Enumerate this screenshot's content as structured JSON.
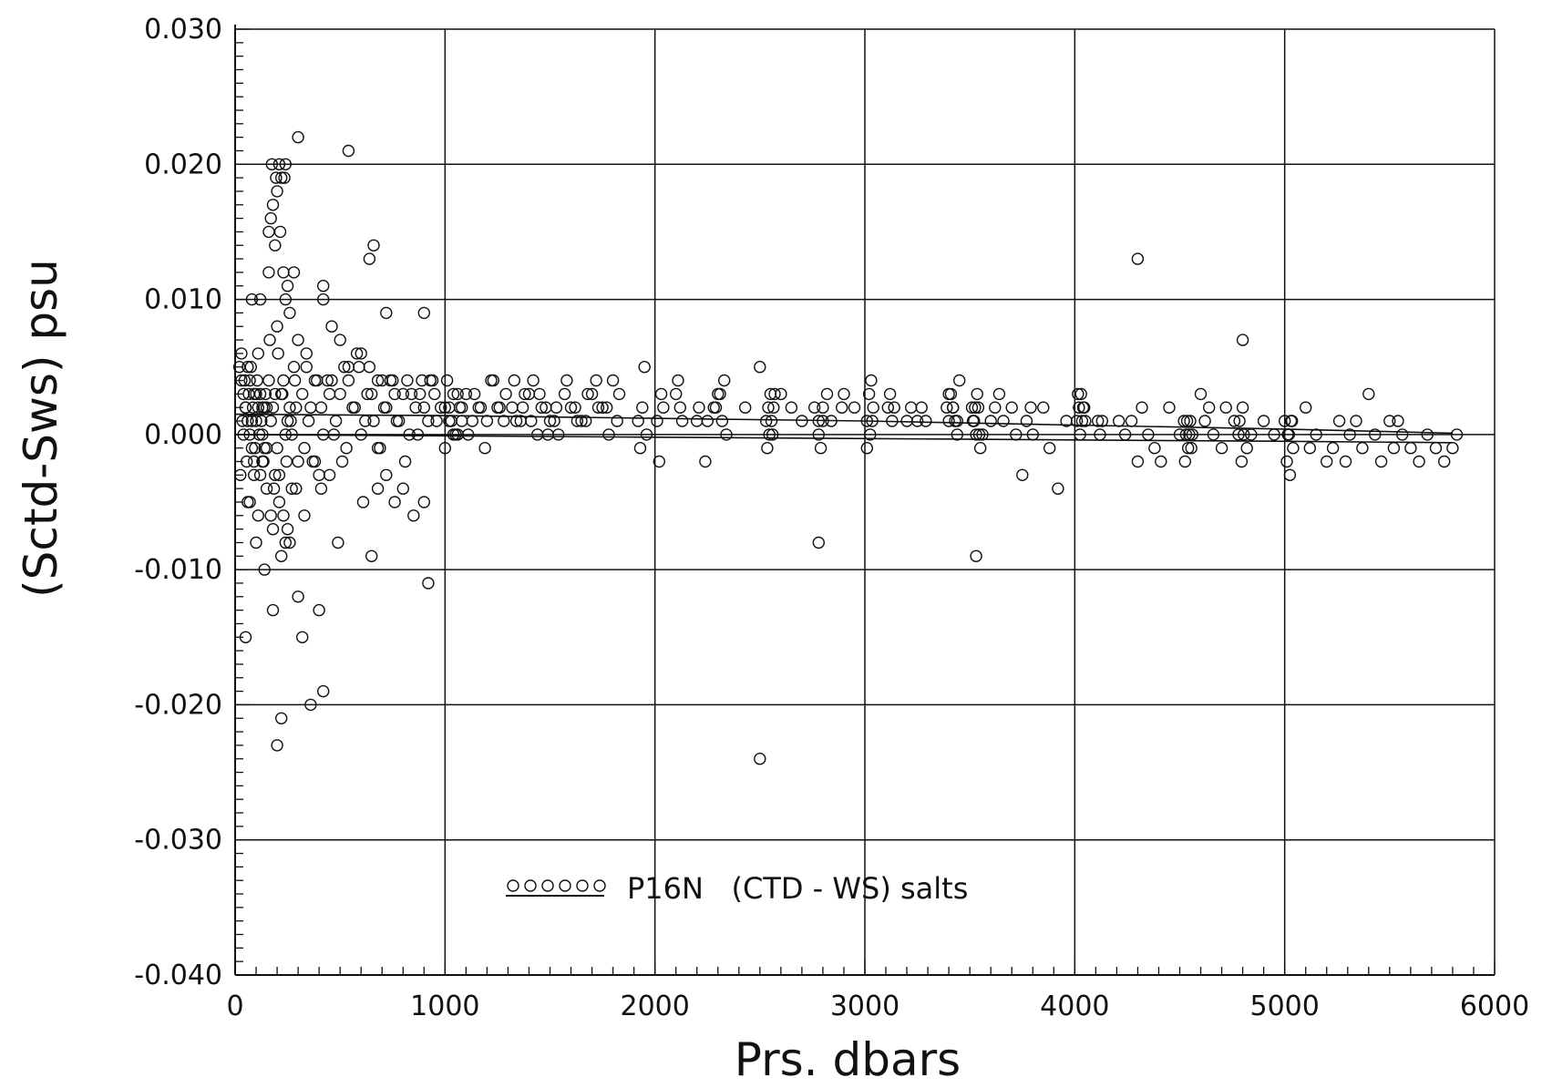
{
  "chart_data": {
    "type": "scatter",
    "xlabel": "Prs. dbars",
    "ylabel": "(Sctd-Sws) psu",
    "xlim": [
      0,
      6000
    ],
    "ylim": [
      -0.04,
      0.03
    ],
    "xticks": [
      0,
      1000,
      2000,
      3000,
      4000,
      5000,
      6000
    ],
    "xtick_labels": [
      "0",
      "1000",
      "2000",
      "3000",
      "4000",
      "5000",
      "6000"
    ],
    "yticks": [
      0.03,
      0.02,
      0.01,
      0.0,
      -0.01,
      -0.02,
      -0.03,
      -0.04
    ],
    "ytick_labels": [
      "0.030",
      "0.020",
      "0.010",
      "0.000",
      "-0.010",
      "-0.020",
      "-0.030",
      "-0.040"
    ],
    "grid": true,
    "legend": {
      "position": "bottom-center",
      "entries": [
        {
          "label": "P16N",
          "marker": "open-circle",
          "text": "P16N   (CTD - WS) salts"
        }
      ]
    },
    "colors": {
      "ink": "#111111",
      "background": "#ffffff"
    },
    "series": [
      {
        "name": "P16N",
        "x": [
          20,
          30,
          40,
          50,
          60,
          70,
          80,
          90,
          100,
          110,
          120,
          130,
          140,
          150,
          30,
          45,
          55,
          65,
          75,
          85,
          95,
          105,
          115,
          125,
          135,
          145,
          25,
          35,
          50,
          70,
          90,
          110,
          130,
          150,
          40,
          60,
          80,
          100,
          120,
          140,
          160,
          180,
          200,
          220,
          240,
          260,
          280,
          300,
          170,
          190,
          210,
          230,
          250,
          270,
          290,
          165,
          185,
          205,
          225,
          245,
          265,
          285,
          320,
          350,
          380,
          410,
          440,
          470,
          500,
          530,
          560,
          590,
          620,
          650,
          680,
          710,
          740,
          770,
          800,
          830,
          860,
          890,
          920,
          950,
          980,
          330,
          360,
          390,
          420,
          450,
          480,
          510,
          540,
          570,
          600,
          630,
          660,
          690,
          720,
          750,
          780,
          810,
          840,
          870,
          900,
          930,
          960,
          340,
          400,
          460,
          520,
          580,
          640,
          700,
          760,
          820,
          880,
          940,
          1000,
          1020,
          1040,
          1060,
          1080,
          1000,
          1020,
          1040,
          1060,
          1080,
          1010,
          1030,
          1050,
          1070,
          1100,
          1130,
          1160,
          1190,
          1220,
          1250,
          1280,
          1110,
          1140,
          1170,
          1200,
          1230,
          1260,
          1290,
          1320,
          1360,
          1400,
          1440,
          1480,
          1520,
          1330,
          1370,
          1410,
          1450,
          1490,
          1530,
          1340,
          1380,
          1420,
          1460,
          1500,
          1540,
          1570,
          1620,
          1670,
          1720,
          1770,
          1820,
          1580,
          1630,
          1680,
          1730,
          1780,
          1830,
          1600,
          1650,
          1700,
          1750,
          1800,
          1920,
          1940,
          1960,
          1930,
          1950,
          2010,
          2030,
          2020,
          2040,
          2110,
          2120,
          2130,
          2100,
          2200,
          2240,
          2280,
          2300,
          2320,
          2340,
          2210,
          2250,
          2290,
          2310,
          2330,
          2430,
          2500,
          2530,
          2540,
          2550,
          2560,
          2570,
          2535,
          2545,
          2555,
          2565,
          2600,
          2650,
          2700,
          2760,
          2780,
          2800,
          2820,
          2840,
          2780,
          2790,
          2800,
          2890,
          2900,
          2950,
          3010,
          3020,
          3030,
          3040,
          3010,
          3025,
          3035,
          3110,
          3120,
          3130,
          3140,
          3200,
          3220,
          3250,
          3270,
          3290,
          3390,
          3400,
          3410,
          3420,
          3430,
          3440,
          3450,
          3400,
          3420,
          3440,
          3510,
          3520,
          3530,
          3540,
          3550,
          3560,
          3515,
          3525,
          3535,
          3545,
          3600,
          3620,
          3640,
          3660,
          3700,
          3720,
          3750,
          3770,
          3790,
          3800,
          3850,
          3880,
          3920,
          3960,
          4010,
          4020,
          4030,
          4040,
          4050,
          4015,
          4025,
          4035,
          4045,
          4110,
          4120,
          4130,
          4210,
          4240,
          4270,
          4300,
          4320,
          4350,
          4380,
          4410,
          4450,
          4500,
          4520,
          4530,
          4540,
          4550,
          4560,
          4525,
          4535,
          4545,
          4555,
          4600,
          4620,
          4640,
          4660,
          4700,
          4720,
          4760,
          4780,
          4800,
          4820,
          4840,
          4785,
          4795,
          4805,
          4900,
          4950,
          5000,
          5010,
          5020,
          5030,
          5040,
          5015,
          5025,
          5035,
          5100,
          5120,
          5150,
          5200,
          5230,
          5260,
          5290,
          5310,
          5340,
          5370,
          5400,
          5430,
          5460,
          5500,
          5520,
          5540,
          5560,
          5600,
          5640,
          5680,
          5720,
          5760,
          5800,
          5820,
          80,
          120,
          160,
          200,
          240,
          280,
          60,
          100,
          140,
          180,
          220,
          260,
          300,
          160,
          180,
          200,
          220,
          240,
          170,
          190,
          210,
          230,
          250,
          175,
          195,
          215,
          235,
          260,
          300,
          340,
          380,
          420,
          460,
          500,
          540,
          600,
          640,
          680,
          720,
          70,
          110,
          150,
          190,
          230,
          270,
          90,
          130,
          170,
          210,
          250,
          290,
          330,
          370,
          410,
          450,
          490,
          610,
          650,
          680,
          720,
          760,
          800,
          850,
          900,
          920,
          50,
          180,
          200,
          220,
          240,
          320,
          360,
          400,
          420,
          300,
          420,
          540,
          660,
          900,
          2500,
          2780,
          3530,
          4300,
          4800
        ],
        "y": [
          0.005,
          0.004,
          0.003,
          0.002,
          0.001,
          0.0,
          -0.001,
          -0.002,
          0.001,
          0.002,
          0.003,
          0.0,
          -0.001,
          0.002,
          0.006,
          0.004,
          -0.002,
          0.003,
          0.005,
          0.002,
          -0.001,
          0.004,
          0.0,
          0.001,
          -0.002,
          0.003,
          -0.003,
          0.001,
          0.002,
          0.004,
          0.003,
          0.006,
          0.002,
          -0.001,
          0.0,
          0.005,
          0.001,
          0.003,
          -0.003,
          0.002,
          0.004,
          0.002,
          -0.001,
          0.003,
          0.0,
          0.002,
          0.005,
          -0.002,
          0.001,
          0.003,
          -0.003,
          0.004,
          0.001,
          0.0,
          0.002,
          0.007,
          -0.004,
          0.006,
          0.003,
          -0.002,
          0.001,
          0.004,
          0.003,
          0.001,
          -0.002,
          0.002,
          0.004,
          0.0,
          0.003,
          -0.001,
          0.002,
          0.005,
          0.001,
          0.003,
          -0.001,
          0.002,
          0.004,
          0.001,
          0.003,
          0.0,
          0.002,
          0.004,
          0.001,
          0.003,
          0.002,
          -0.001,
          0.002,
          0.004,
          0.0,
          0.003,
          0.001,
          -0.002,
          0.004,
          0.002,
          0.0,
          0.003,
          0.001,
          -0.001,
          0.002,
          0.004,
          0.001,
          -0.002,
          0.003,
          0.0,
          0.002,
          0.004,
          0.001,
          0.005,
          -0.003,
          0.004,
          0.005,
          0.006,
          0.005,
          0.004,
          0.003,
          0.004,
          0.003,
          0.004,
          0.002,
          0.001,
          0.0,
          0.003,
          0.001,
          -0.001,
          0.002,
          0.003,
          0.0,
          0.002,
          0.004,
          0.001,
          0.0,
          0.002,
          0.003,
          0.001,
          0.002,
          -0.001,
          0.004,
          0.002,
          0.001,
          0.0,
          0.003,
          0.002,
          0.001,
          0.004,
          0.002,
          0.003,
          0.002,
          0.001,
          0.003,
          0.0,
          0.002,
          0.001,
          0.004,
          0.002,
          0.001,
          0.003,
          0.0,
          0.002,
          0.001,
          0.003,
          0.004,
          0.002,
          0.001,
          0.0,
          0.003,
          0.002,
          0.001,
          0.004,
          0.002,
          0.001,
          0.004,
          0.001,
          0.003,
          0.002,
          0.0,
          0.003,
          0.002,
          0.001,
          0.003,
          0.002,
          0.004,
          0.001,
          0.002,
          0.0,
          -0.001,
          0.005,
          0.001,
          0.003,
          -0.002,
          0.002,
          0.004,
          0.002,
          0.001,
          0.003,
          0.001,
          -0.002,
          0.002,
          0.003,
          0.001,
          0.0,
          0.002,
          0.001,
          0.002,
          0.003,
          0.004,
          0.002,
          0.005,
          0.001,
          0.002,
          0.003,
          0.0,
          0.003,
          -0.001,
          0.0,
          0.001,
          0.002,
          0.003,
          0.002,
          0.001,
          0.002,
          0.001,
          0.002,
          0.003,
          0.001,
          0.0,
          -0.001,
          0.001,
          0.002,
          0.003,
          0.002,
          0.001,
          0.003,
          0.004,
          0.002,
          -0.001,
          0.0,
          0.001,
          0.002,
          0.003,
          0.001,
          0.002,
          0.001,
          0.002,
          0.001,
          0.002,
          0.001,
          0.002,
          0.001,
          0.003,
          0.002,
          0.001,
          0.0,
          0.004,
          0.003,
          0.002,
          0.001,
          0.002,
          0.001,
          0.0,
          0.002,
          -0.001,
          0.0,
          0.001,
          0.002,
          0.003,
          0.0,
          0.001,
          0.002,
          0.003,
          0.001,
          0.002,
          0.0,
          -0.003,
          0.001,
          0.002,
          0.0,
          0.002,
          -0.001,
          -0.004,
          0.001,
          0.001,
          0.002,
          0.003,
          0.002,
          0.001,
          0.003,
          0.0,
          0.001,
          0.002,
          0.001,
          0.0,
          0.001,
          0.001,
          0.0,
          0.001,
          -0.002,
          0.002,
          0.0,
          -0.001,
          -0.002,
          0.002,
          0.0,
          0.001,
          0.0,
          -0.001,
          0.001,
          0.0,
          -0.002,
          0.001,
          0.0,
          -0.001,
          0.003,
          0.001,
          0.002,
          0.0,
          -0.001,
          0.002,
          0.001,
          0.0,
          0.002,
          -0.001,
          0.0,
          0.001,
          -0.002,
          0.0,
          0.001,
          0.0,
          0.001,
          -0.002,
          0.0,
          0.001,
          -0.001,
          0.0,
          -0.003,
          0.001,
          0.002,
          -0.001,
          0.0,
          -0.002,
          -0.001,
          0.001,
          -0.002,
          0.0,
          0.001,
          -0.001,
          0.003,
          0.0,
          -0.002,
          0.001,
          -0.001,
          0.001,
          0.0,
          -0.001,
          -0.002,
          0.0,
          -0.001,
          -0.002,
          -0.001,
          0.0,
          0.01,
          0.01,
          0.012,
          0.008,
          0.01,
          0.012,
          -0.005,
          -0.008,
          -0.01,
          -0.007,
          -0.009,
          -0.008,
          -0.012,
          0.015,
          0.017,
          0.018,
          0.019,
          0.02,
          0.016,
          0.014,
          0.02,
          0.012,
          0.011,
          0.02,
          0.019,
          0.015,
          0.019,
          0.009,
          0.007,
          0.006,
          0.004,
          0.01,
          0.008,
          0.007,
          0.005,
          0.006,
          0.013,
          0.004,
          0.009,
          -0.005,
          -0.006,
          -0.004,
          -0.003,
          -0.006,
          -0.004,
          -0.003,
          -0.002,
          -0.006,
          -0.005,
          -0.007,
          -0.004,
          -0.006,
          -0.002,
          -0.004,
          -0.003,
          -0.008,
          -0.005,
          -0.009,
          -0.004,
          -0.003,
          -0.005,
          -0.004,
          -0.006,
          -0.005,
          -0.011,
          -0.015,
          -0.013,
          -0.023,
          -0.021,
          -0.008,
          -0.015,
          -0.02,
          -0.013,
          -0.019,
          0.022,
          0.011,
          0.021,
          0.014,
          0.009,
          -0.024,
          -0.008,
          -0.009,
          0.013,
          0.007
        ]
      },
      {
        "name": "",
        "type": "line",
        "x": [
          0,
          1000,
          2000,
          3000,
          4000,
          5000,
          5800
        ],
        "y": [
          0.0015,
          0.0014,
          0.0012,
          0.001,
          0.0007,
          0.0004,
          0.0001
        ]
      },
      {
        "name": "",
        "type": "line",
        "x": [
          0,
          1000,
          2000,
          3000,
          4000,
          5000,
          5800
        ],
        "y": [
          0.0,
          -0.0001,
          -0.0002,
          -0.0003,
          -0.0004,
          -0.0005,
          -0.0006
        ]
      }
    ]
  }
}
